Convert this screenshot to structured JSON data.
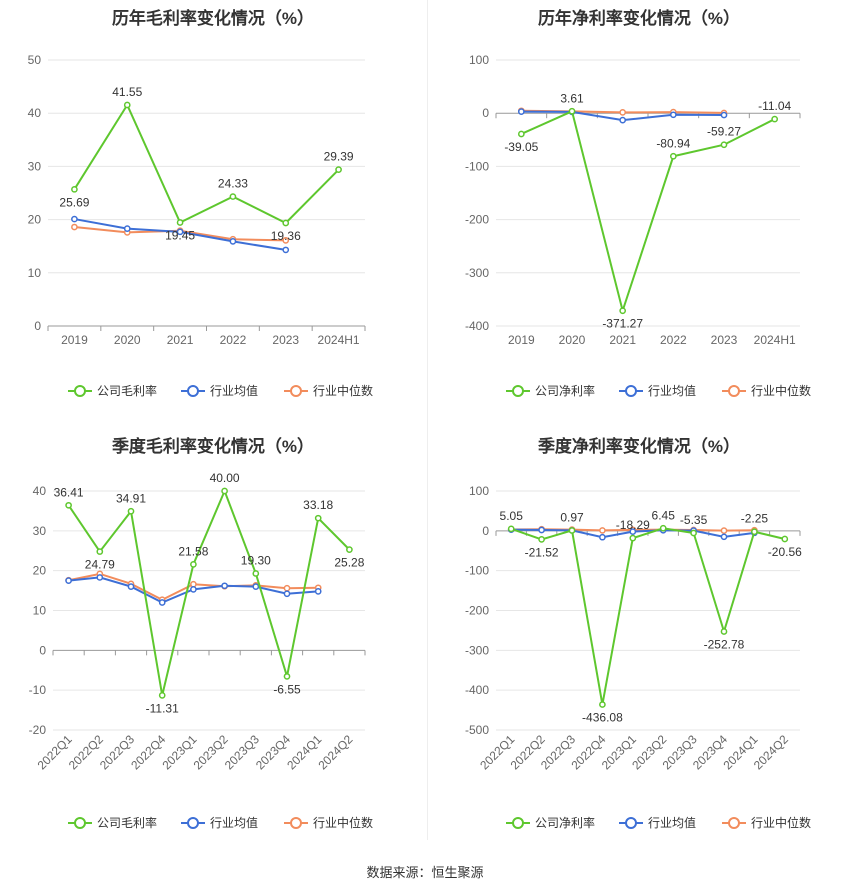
{
  "source": "数据来源：恒生聚源",
  "chart_data": [
    {
      "type": "line",
      "title": "历年毛利率变化情况（%）",
      "categories": [
        "2019",
        "2020",
        "2021",
        "2022",
        "2023",
        "2024H1"
      ],
      "ylim": [
        0,
        50
      ],
      "yticks": [
        0,
        10,
        20,
        30,
        40,
        50
      ],
      "series": [
        {
          "name": "公司毛利率",
          "color": "#5ec72e",
          "labels": true,
          "values": [
            25.69,
            41.55,
            19.45,
            24.33,
            19.36,
            29.39
          ]
        },
        {
          "name": "行业均值",
          "color": "#3d6fd6",
          "labels": false,
          "values": [
            20.1,
            18.3,
            17.7,
            15.9,
            14.3,
            null
          ]
        },
        {
          "name": "行业中位数",
          "color": "#f28c5c",
          "labels": false,
          "values": [
            18.6,
            17.6,
            17.9,
            16.3,
            16.1,
            null
          ]
        }
      ],
      "grid": true,
      "legend": "bottom"
    },
    {
      "type": "line",
      "title": "历年净利率变化情况（%）",
      "categories": [
        "2019",
        "2020",
        "2021",
        "2022",
        "2023",
        "2024H1"
      ],
      "ylim": [
        -400,
        100
      ],
      "yticks": [
        -400,
        -300,
        -200,
        -100,
        0,
        100
      ],
      "series": [
        {
          "name": "公司净利率",
          "color": "#5ec72e",
          "labels": true,
          "values": [
            -39.05,
            3.61,
            -371.27,
            -80.94,
            -59.27,
            -11.04
          ]
        },
        {
          "name": "行业均值",
          "color": "#3d6fd6",
          "labels": false,
          "values": [
            3.0,
            2.5,
            -13.0,
            -3.0,
            -3.5,
            null
          ]
        },
        {
          "name": "行业中位数",
          "color": "#f28c5c",
          "labels": false,
          "values": [
            4.5,
            3.5,
            1.5,
            2.0,
            0.5,
            null
          ]
        }
      ],
      "grid": true,
      "legend": "bottom"
    },
    {
      "type": "line",
      "title": "季度毛利率变化情况（%）",
      "categories": [
        "2022Q1",
        "2022Q2",
        "2022Q3",
        "2022Q4",
        "2023Q1",
        "2023Q2",
        "2023Q3",
        "2023Q4",
        "2024Q1",
        "2024Q2"
      ],
      "ylim": [
        -20,
        40
      ],
      "yticks": [
        -20,
        -10,
        0,
        10,
        20,
        30,
        40
      ],
      "series": [
        {
          "name": "公司毛利率",
          "color": "#5ec72e",
          "labels": true,
          "values": [
            36.41,
            24.79,
            34.91,
            -11.31,
            21.58,
            40.0,
            19.3,
            -6.55,
            33.18,
            25.28
          ]
        },
        {
          "name": "行业均值",
          "color": "#3d6fd6",
          "labels": false,
          "values": [
            17.5,
            18.3,
            16.0,
            12.0,
            15.3,
            16.2,
            16.0,
            14.2,
            14.8,
            null
          ]
        },
        {
          "name": "行业中位数",
          "color": "#f28c5c",
          "labels": false,
          "values": [
            17.6,
            19.2,
            16.7,
            12.7,
            16.6,
            16.1,
            16.3,
            15.6,
            15.7,
            null
          ]
        }
      ],
      "grid": true,
      "legend": "bottom"
    },
    {
      "type": "line",
      "title": "季度净利率变化情况（%）",
      "categories": [
        "2022Q1",
        "2022Q2",
        "2022Q3",
        "2022Q4",
        "2023Q1",
        "2023Q2",
        "2023Q3",
        "2023Q4",
        "2024Q1",
        "2024Q2"
      ],
      "ylim": [
        -500,
        100
      ],
      "yticks": [
        -500,
        -400,
        -300,
        -200,
        -100,
        0,
        100
      ],
      "series": [
        {
          "name": "公司净利率",
          "color": "#5ec72e",
          "labels": true,
          "values": [
            5.05,
            -21.52,
            0.97,
            -436.08,
            -18.29,
            6.45,
            -5.35,
            -252.78,
            -2.25,
            -20.56
          ]
        },
        {
          "name": "行业均值",
          "color": "#3d6fd6",
          "labels": false,
          "values": [
            3.0,
            2.0,
            1.0,
            -16.0,
            -2.0,
            1.5,
            0.5,
            -15.0,
            -5.0,
            null
          ]
        },
        {
          "name": "行业中位数",
          "color": "#f28c5c",
          "labels": false,
          "values": [
            3.5,
            4.0,
            3.0,
            1.0,
            2.5,
            3.0,
            2.0,
            0.5,
            1.5,
            null
          ]
        }
      ],
      "grid": true,
      "legend": "bottom"
    }
  ]
}
